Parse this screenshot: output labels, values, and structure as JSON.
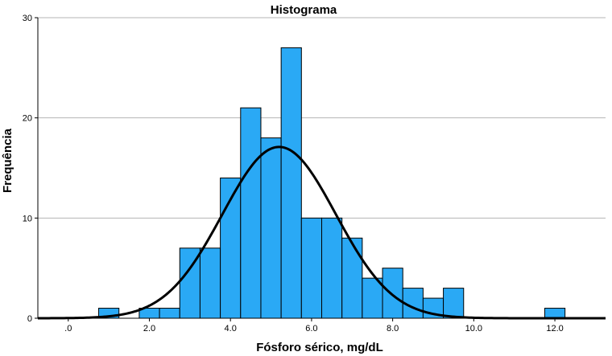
{
  "chart_data": {
    "type": "bar",
    "title": "Histograma",
    "xlabel": "Fósforo sérico, mg/dL",
    "ylabel": "Frequência",
    "xlim": [
      -0.75,
      13.25
    ],
    "ylim": [
      0,
      30
    ],
    "x_ticks": [
      {
        "value": 0,
        "label": ".0"
      },
      {
        "value": 2,
        "label": "2.0"
      },
      {
        "value": 4,
        "label": "4.0"
      },
      {
        "value": 6,
        "label": "6.0"
      },
      {
        "value": 8,
        "label": "8.0"
      },
      {
        "value": 10,
        "label": "10.0"
      },
      {
        "value": 12,
        "label": "12.0"
      }
    ],
    "y_ticks": [
      0,
      10,
      20,
      30
    ],
    "grid": "horizontal",
    "bin_width": 0.5,
    "bins": [
      {
        "start": 0.75,
        "count": 1
      },
      {
        "start": 1.25,
        "count": 0
      },
      {
        "start": 1.75,
        "count": 1
      },
      {
        "start": 2.25,
        "count": 1
      },
      {
        "start": 2.75,
        "count": 7
      },
      {
        "start": 3.25,
        "count": 7
      },
      {
        "start": 3.75,
        "count": 14
      },
      {
        "start": 4.25,
        "count": 21
      },
      {
        "start": 4.75,
        "count": 18
      },
      {
        "start": 5.25,
        "count": 27
      },
      {
        "start": 5.75,
        "count": 10
      },
      {
        "start": 6.25,
        "count": 10
      },
      {
        "start": 6.75,
        "count": 8
      },
      {
        "start": 7.25,
        "count": 4
      },
      {
        "start": 7.75,
        "count": 5
      },
      {
        "start": 8.25,
        "count": 3
      },
      {
        "start": 8.75,
        "count": 2
      },
      {
        "start": 9.25,
        "count": 3
      },
      {
        "start": 11.75,
        "count": 1
      }
    ],
    "normal_curve": {
      "mean": 5.2,
      "sd": 1.4,
      "peak": 17.1
    },
    "colors": {
      "bar_fill": "#2aa9f5",
      "bar_stroke": "#000000",
      "curve": "#000000",
      "grid": "#b4b4b4",
      "axis": "#000000"
    }
  }
}
